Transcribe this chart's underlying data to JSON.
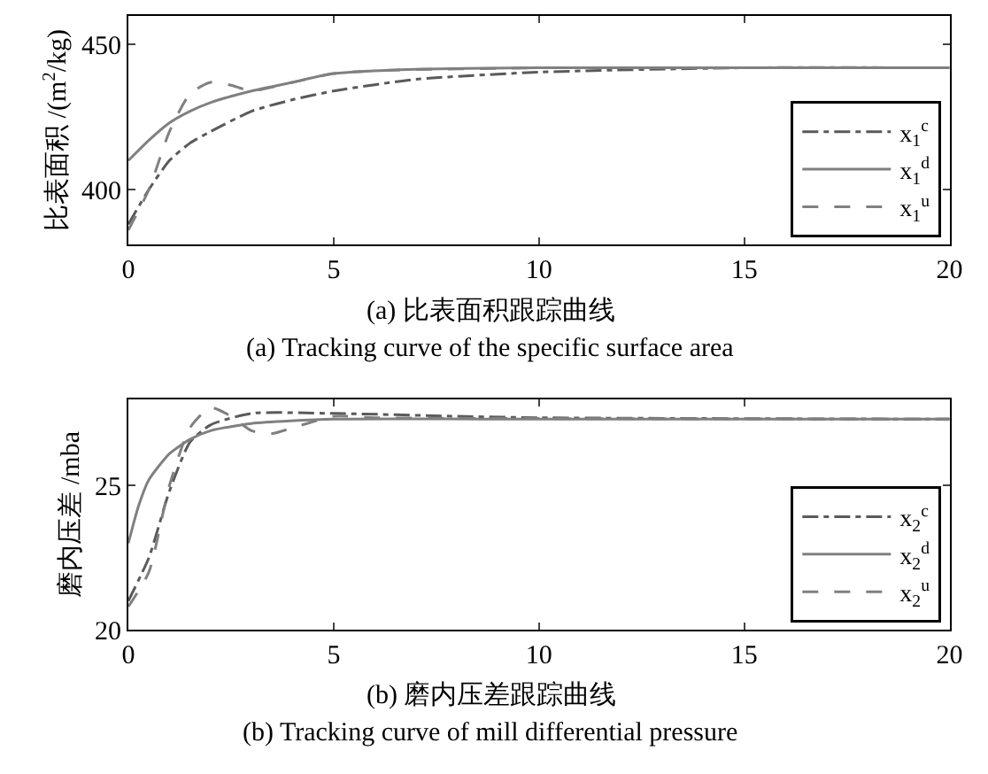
{
  "chart_data": [
    {
      "type": "line",
      "ylabel": "比表面积 /(m$^{2}$/kg)",
      "xlim": [
        0,
        20
      ],
      "xticks": [
        0,
        5,
        10,
        15,
        20
      ],
      "ylim": [
        381,
        460
      ],
      "yticks": [
        400,
        450
      ],
      "legend": "bottom right",
      "annotations": [
        "(a) 比表面积跟踪曲线",
        "(a) Tracking curve of the specific surface area"
      ],
      "series": [
        {
          "name": "x$_{1}$$^{c}$",
          "color": "#5a5a5a",
          "line_style": "dashdot",
          "x": [
            0,
            0.5,
            1,
            1.5,
            2,
            3,
            4,
            5,
            7,
            10,
            15,
            20
          ],
          "values": [
            388,
            400,
            410,
            416,
            420,
            427,
            431,
            434,
            438,
            440.5,
            442,
            442
          ]
        },
        {
          "name": "x$_{1}$$^{d}$",
          "color": "#808080",
          "line_style": "solid",
          "x": [
            0,
            0.5,
            1,
            1.5,
            2,
            3,
            4,
            5,
            7,
            10,
            15,
            20
          ],
          "values": [
            410,
            417,
            423,
            427,
            430,
            434,
            437,
            440,
            441.5,
            442,
            442,
            442
          ]
        },
        {
          "name": "x$_{1}$$^{u}$",
          "color": "#808080",
          "line_style": "dashed",
          "x": [
            0,
            0.5,
            1,
            1.5,
            2,
            2.5,
            3,
            4,
            5,
            6,
            10,
            15,
            20
          ],
          "values": [
            386,
            400,
            420,
            433,
            437,
            436,
            434,
            437,
            440,
            441,
            442,
            442,
            442
          ]
        }
      ]
    },
    {
      "type": "line",
      "ylabel": "磨内压差 /mba",
      "xlim": [
        0,
        20
      ],
      "xticks": [
        0,
        5,
        10,
        15,
        20
      ],
      "ylim": [
        20,
        28
      ],
      "yticks": [
        20,
        25
      ],
      "legend": "bottom right",
      "annotations": [
        "(b) 磨内压差跟踪曲线",
        "(b) Tracking curve of mill differential pressure"
      ],
      "series": [
        {
          "name": "x$_{2}$$^{c}$",
          "color": "#5a5a5a",
          "line_style": "dashdot",
          "x": [
            0,
            0.5,
            1,
            1.5,
            2,
            3,
            5,
            8,
            10,
            20
          ],
          "values": [
            21,
            22.5,
            24.8,
            26.5,
            27.1,
            27.5,
            27.5,
            27.4,
            27.35,
            27.3
          ]
        },
        {
          "name": "x$_{2}$$^{d}$",
          "color": "#808080",
          "line_style": "solid",
          "x": [
            0,
            0.25,
            0.5,
            1,
            1.5,
            2,
            3,
            5,
            10,
            20
          ],
          "values": [
            23,
            24.3,
            25.2,
            26.1,
            26.6,
            26.9,
            27.15,
            27.3,
            27.3,
            27.3
          ]
        },
        {
          "name": "x$_{2}$$^{u}$",
          "color": "#808080",
          "line_style": "dashed",
          "x": [
            0,
            0.5,
            1,
            1.5,
            2,
            2.5,
            3,
            3.5,
            4,
            5,
            6,
            20
          ],
          "values": [
            20.8,
            22,
            25,
            27,
            27.7,
            27.4,
            26.9,
            26.8,
            27.0,
            27.4,
            27.35,
            27.3
          ]
        }
      ]
    }
  ]
}
